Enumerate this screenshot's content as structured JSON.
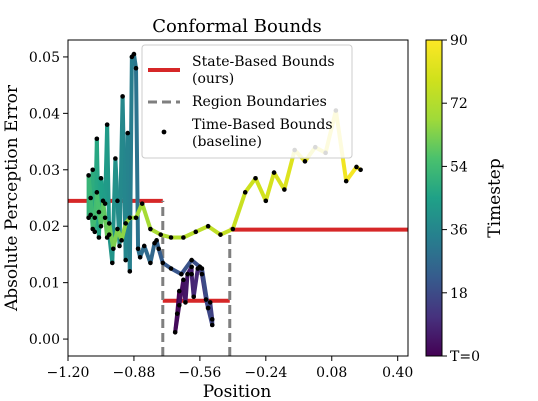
{
  "chart_data": {
    "type": "line",
    "title": "Conformal Bounds",
    "xlabel": "Position",
    "ylabel": "Absolute Perception Error",
    "xlim": [
      -1.2,
      0.45
    ],
    "ylim": [
      -0.003,
      0.053
    ],
    "xticks": [
      -1.2,
      -0.88,
      -0.56,
      -0.24,
      0.08,
      0.4
    ],
    "xtick_labels": [
      "−1.20",
      "−0.88",
      "−0.56",
      "−0.24",
      "0.08",
      "0.40"
    ],
    "yticks": [
      0.0,
      0.01,
      0.02,
      0.03,
      0.04,
      0.05
    ],
    "ytick_labels": [
      "0.00",
      "0.01",
      "0.02",
      "0.03",
      "0.04",
      "0.05"
    ],
    "grid": false,
    "legend": {
      "placement": "upper-center",
      "entries": [
        {
          "label_line1": "State-Based Bounds",
          "label_line2": "(ours)",
          "style": "solid",
          "color": "#d62728"
        },
        {
          "label_line1": "Region Boundaries",
          "label_line2": "",
          "style": "dashed",
          "color": "#7f7f7f"
        },
        {
          "label_line1": "Time-Based Bounds",
          "label_line2": "(baseline)",
          "style": "points",
          "color": "#000000"
        }
      ]
    },
    "colorbar": {
      "label": "Timestep",
      "colormap": "viridis",
      "range": [
        0,
        90
      ],
      "ticks": [
        0,
        18,
        36,
        54,
        72,
        90
      ],
      "tick_labels": [
        "T=0",
        "18",
        "36",
        "54",
        "72",
        "90"
      ]
    },
    "state_bounds": [
      {
        "x0": -1.2,
        "x1": -0.74,
        "y": 0.0245
      },
      {
        "x0": -0.74,
        "x1": -0.415,
        "y": 0.0068
      },
      {
        "x0": -0.415,
        "x1": 0.45,
        "y": 0.0194
      }
    ],
    "region_boundaries": [
      {
        "x": -0.74,
        "y0": -0.003,
        "y1": 0.0245
      },
      {
        "x": -0.415,
        "y0": -0.003,
        "y1": 0.0194
      }
    ],
    "trajectory": {
      "t": [
        0,
        1,
        2,
        3,
        4,
        5,
        6,
        7,
        8,
        9,
        10,
        11,
        12,
        13,
        14,
        15,
        16,
        17,
        18,
        19,
        20,
        21,
        22,
        23,
        24,
        25,
        26,
        27,
        28,
        29,
        30,
        31,
        32,
        33,
        34,
        35,
        36,
        37,
        38,
        39,
        40,
        41,
        42,
        43,
        44,
        45,
        46,
        47,
        48,
        49,
        50,
        51,
        52,
        53,
        54,
        55,
        56,
        57,
        58,
        59,
        60,
        61,
        62,
        63,
        64,
        65,
        66,
        67,
        68,
        69,
        70,
        71,
        72,
        73,
        74,
        75,
        76,
        77,
        78,
        79,
        80,
        81,
        82,
        83,
        84,
        85,
        86,
        87,
        88,
        89,
        90
      ],
      "x": [
        -0.66,
        -0.67,
        -0.68,
        -0.66,
        -0.64,
        -0.63,
        -0.62,
        -0.6,
        -0.6,
        -0.59,
        -0.57,
        -0.56,
        -0.55,
        -0.53,
        -0.52,
        -0.51,
        -0.5,
        -0.5,
        -0.52,
        -0.55,
        -0.6,
        -0.65,
        -0.7,
        -0.74,
        -0.76,
        -0.77,
        -0.78,
        -0.8,
        -0.83,
        -0.85,
        -0.86,
        -0.87,
        -0.88,
        -0.89,
        -0.9,
        -0.91,
        -0.92,
        -0.935,
        -0.95,
        -0.96,
        -0.97,
        -0.985,
        -1.0,
        -1.01,
        -1.02,
        -1.04,
        -1.05,
        -1.06,
        -1.07,
        -1.08,
        -1.09,
        -1.1,
        -1.1,
        -1.09,
        -1.08,
        -1.07,
        -1.06,
        -1.05,
        -1.04,
        -1.03,
        -1.02,
        -1.01,
        -1.0,
        -0.98,
        -0.96,
        -0.94,
        -0.92,
        -0.9,
        -0.87,
        -0.84,
        -0.8,
        -0.75,
        -0.7,
        -0.64,
        -0.58,
        -0.52,
        -0.46,
        -0.4,
        -0.34,
        -0.29,
        -0.24,
        -0.2,
        -0.15,
        -0.1,
        -0.05,
        0.0,
        0.05,
        0.1,
        0.15,
        0.2,
        0.22
      ],
      "y": [
        0.0085,
        0.0045,
        0.0012,
        0.006,
        0.0105,
        0.0065,
        0.0115,
        0.0128,
        0.0115,
        0.0075,
        0.0125,
        0.0128,
        0.0115,
        0.007,
        0.0055,
        0.0065,
        0.0035,
        0.0025,
        0.0055,
        0.0125,
        0.014,
        0.0115,
        0.0125,
        0.0135,
        0.016,
        0.0175,
        0.017,
        0.0135,
        0.0165,
        0.0145,
        0.016,
        0.048,
        0.0505,
        0.05,
        0.012,
        0.0365,
        0.014,
        0.043,
        0.0165,
        0.0245,
        0.032,
        0.0135,
        0.0185,
        0.038,
        0.024,
        0.0285,
        0.018,
        0.0355,
        0.019,
        0.03,
        0.022,
        0.0215,
        0.029,
        0.025,
        0.0195,
        0.0215,
        0.026,
        0.0225,
        0.02,
        0.0245,
        0.0215,
        0.018,
        0.0205,
        0.016,
        0.0195,
        0.0175,
        0.0205,
        0.0215,
        0.0215,
        0.024,
        0.0195,
        0.0185,
        0.018,
        0.018,
        0.019,
        0.02,
        0.0185,
        0.0195,
        0.026,
        0.0285,
        0.0245,
        0.0295,
        0.0265,
        0.0335,
        0.0315,
        0.034,
        0.033,
        0.0405,
        0.028,
        0.0305,
        0.03
      ]
    }
  }
}
